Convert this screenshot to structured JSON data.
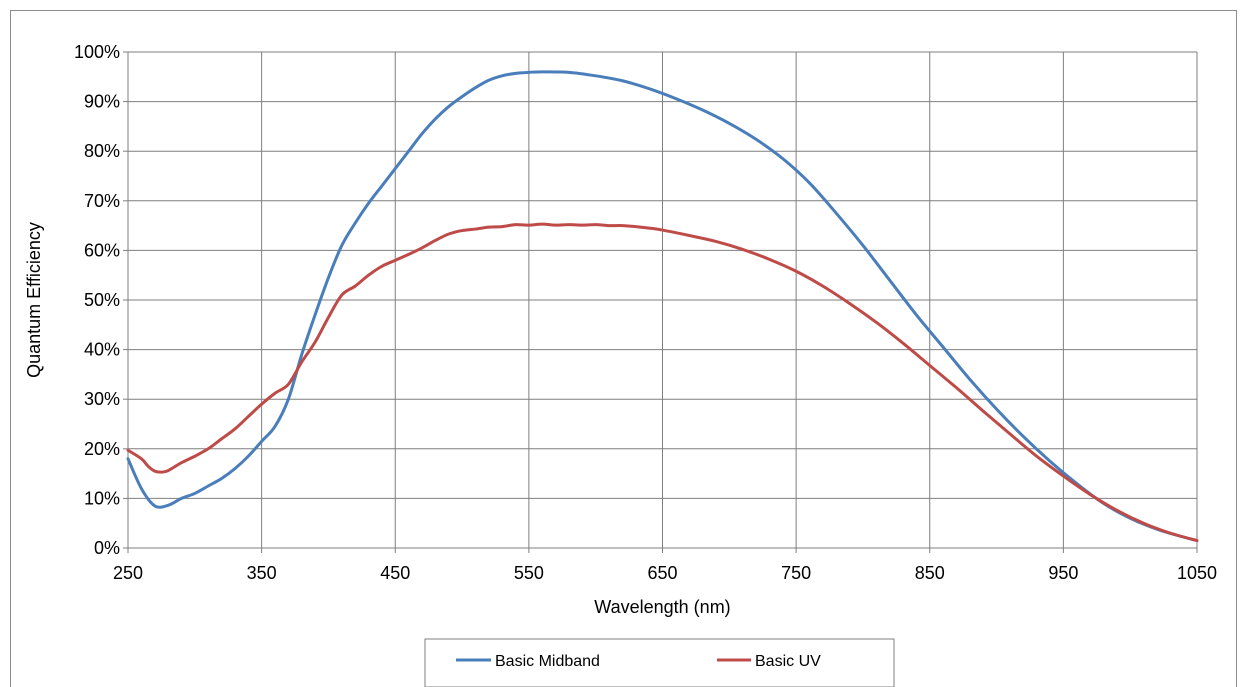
{
  "chart_data": {
    "type": "line",
    "title": "",
    "xlabel": "Wavelength (nm)",
    "ylabel": "Quantum Efficiency",
    "xlim": [
      250,
      1050
    ],
    "ylim": [
      0,
      100
    ],
    "x_ticks": [
      250,
      350,
      450,
      550,
      650,
      750,
      850,
      950,
      1050
    ],
    "y_ticks": [
      0,
      10,
      20,
      30,
      40,
      50,
      60,
      70,
      80,
      90,
      100
    ],
    "x_tick_labels": [
      "250",
      "350",
      "450",
      "550",
      "650",
      "750",
      "850",
      "950",
      "1050"
    ],
    "y_tick_labels": [
      "0%",
      "10%",
      "20%",
      "30%",
      "40%",
      "50%",
      "60%",
      "70%",
      "80%",
      "90%",
      "100%"
    ],
    "grid": true,
    "legend_position": "bottom",
    "series": [
      {
        "name": "Basic Midband",
        "color": "#4a7ebb",
        "points": [
          [
            250,
            18
          ],
          [
            260,
            12
          ],
          [
            270,
            8.5
          ],
          [
            280,
            8.6
          ],
          [
            290,
            10
          ],
          [
            300,
            11
          ],
          [
            310,
            12.5
          ],
          [
            320,
            14
          ],
          [
            330,
            16
          ],
          [
            340,
            18.5
          ],
          [
            350,
            21.5
          ],
          [
            360,
            24.5
          ],
          [
            370,
            30
          ],
          [
            380,
            39
          ],
          [
            390,
            47
          ],
          [
            400,
            54.5
          ],
          [
            410,
            61
          ],
          [
            420,
            65.5
          ],
          [
            430,
            69.5
          ],
          [
            440,
            73
          ],
          [
            450,
            76.5
          ],
          [
            460,
            80
          ],
          [
            470,
            83.5
          ],
          [
            480,
            86.5
          ],
          [
            490,
            89
          ],
          [
            500,
            91
          ],
          [
            510,
            92.8
          ],
          [
            520,
            94.3
          ],
          [
            530,
            95.2
          ],
          [
            540,
            95.7
          ],
          [
            550,
            95.9
          ],
          [
            560,
            96
          ],
          [
            580,
            95.9
          ],
          [
            600,
            95.2
          ],
          [
            620,
            94.2
          ],
          [
            640,
            92.6
          ],
          [
            660,
            90.6
          ],
          [
            680,
            88.3
          ],
          [
            700,
            85.6
          ],
          [
            720,
            82.4
          ],
          [
            740,
            78.5
          ],
          [
            760,
            73.6
          ],
          [
            780,
            67.5
          ],
          [
            800,
            61
          ],
          [
            820,
            54
          ],
          [
            840,
            47
          ],
          [
            860,
            40.5
          ],
          [
            880,
            34
          ],
          [
            900,
            28
          ],
          [
            920,
            22.5
          ],
          [
            940,
            17.5
          ],
          [
            960,
            13
          ],
          [
            980,
            9
          ],
          [
            1000,
            6
          ],
          [
            1020,
            3.8
          ],
          [
            1040,
            2.2
          ],
          [
            1050,
            1.5
          ]
        ]
      },
      {
        "name": "Basic UV",
        "color": "#be4b48",
        "points": [
          [
            250,
            19.7
          ],
          [
            260,
            18
          ],
          [
            265,
            16.5
          ],
          [
            270,
            15.5
          ],
          [
            275,
            15.3
          ],
          [
            280,
            15.6
          ],
          [
            290,
            17.2
          ],
          [
            300,
            18.5
          ],
          [
            310,
            20
          ],
          [
            320,
            22
          ],
          [
            330,
            24
          ],
          [
            340,
            26.5
          ],
          [
            350,
            29
          ],
          [
            360,
            31.2
          ],
          [
            370,
            33
          ],
          [
            380,
            37.5
          ],
          [
            390,
            41.5
          ],
          [
            400,
            46.5
          ],
          [
            410,
            51
          ],
          [
            420,
            52.8
          ],
          [
            430,
            55
          ],
          [
            440,
            56.8
          ],
          [
            450,
            58
          ],
          [
            460,
            59.2
          ],
          [
            470,
            60.5
          ],
          [
            480,
            62
          ],
          [
            490,
            63.3
          ],
          [
            500,
            64
          ],
          [
            510,
            64.3
          ],
          [
            520,
            64.7
          ],
          [
            530,
            64.8
          ],
          [
            540,
            65.2
          ],
          [
            550,
            65.1
          ],
          [
            560,
            65.3
          ],
          [
            570,
            65.1
          ],
          [
            580,
            65.2
          ],
          [
            590,
            65.1
          ],
          [
            600,
            65.2
          ],
          [
            610,
            65
          ],
          [
            620,
            65
          ],
          [
            630,
            64.8
          ],
          [
            640,
            64.5
          ],
          [
            650,
            64.1
          ],
          [
            670,
            63
          ],
          [
            690,
            61.8
          ],
          [
            710,
            60.2
          ],
          [
            730,
            58.2
          ],
          [
            750,
            55.8
          ],
          [
            770,
            52.8
          ],
          [
            790,
            49.3
          ],
          [
            810,
            45.5
          ],
          [
            830,
            41.3
          ],
          [
            850,
            36.8
          ],
          [
            870,
            32.3
          ],
          [
            890,
            27.6
          ],
          [
            910,
            23
          ],
          [
            930,
            18.5
          ],
          [
            950,
            14.5
          ],
          [
            970,
            10.8
          ],
          [
            990,
            7.6
          ],
          [
            1010,
            5
          ],
          [
            1030,
            3
          ],
          [
            1050,
            1.5
          ]
        ]
      }
    ]
  }
}
